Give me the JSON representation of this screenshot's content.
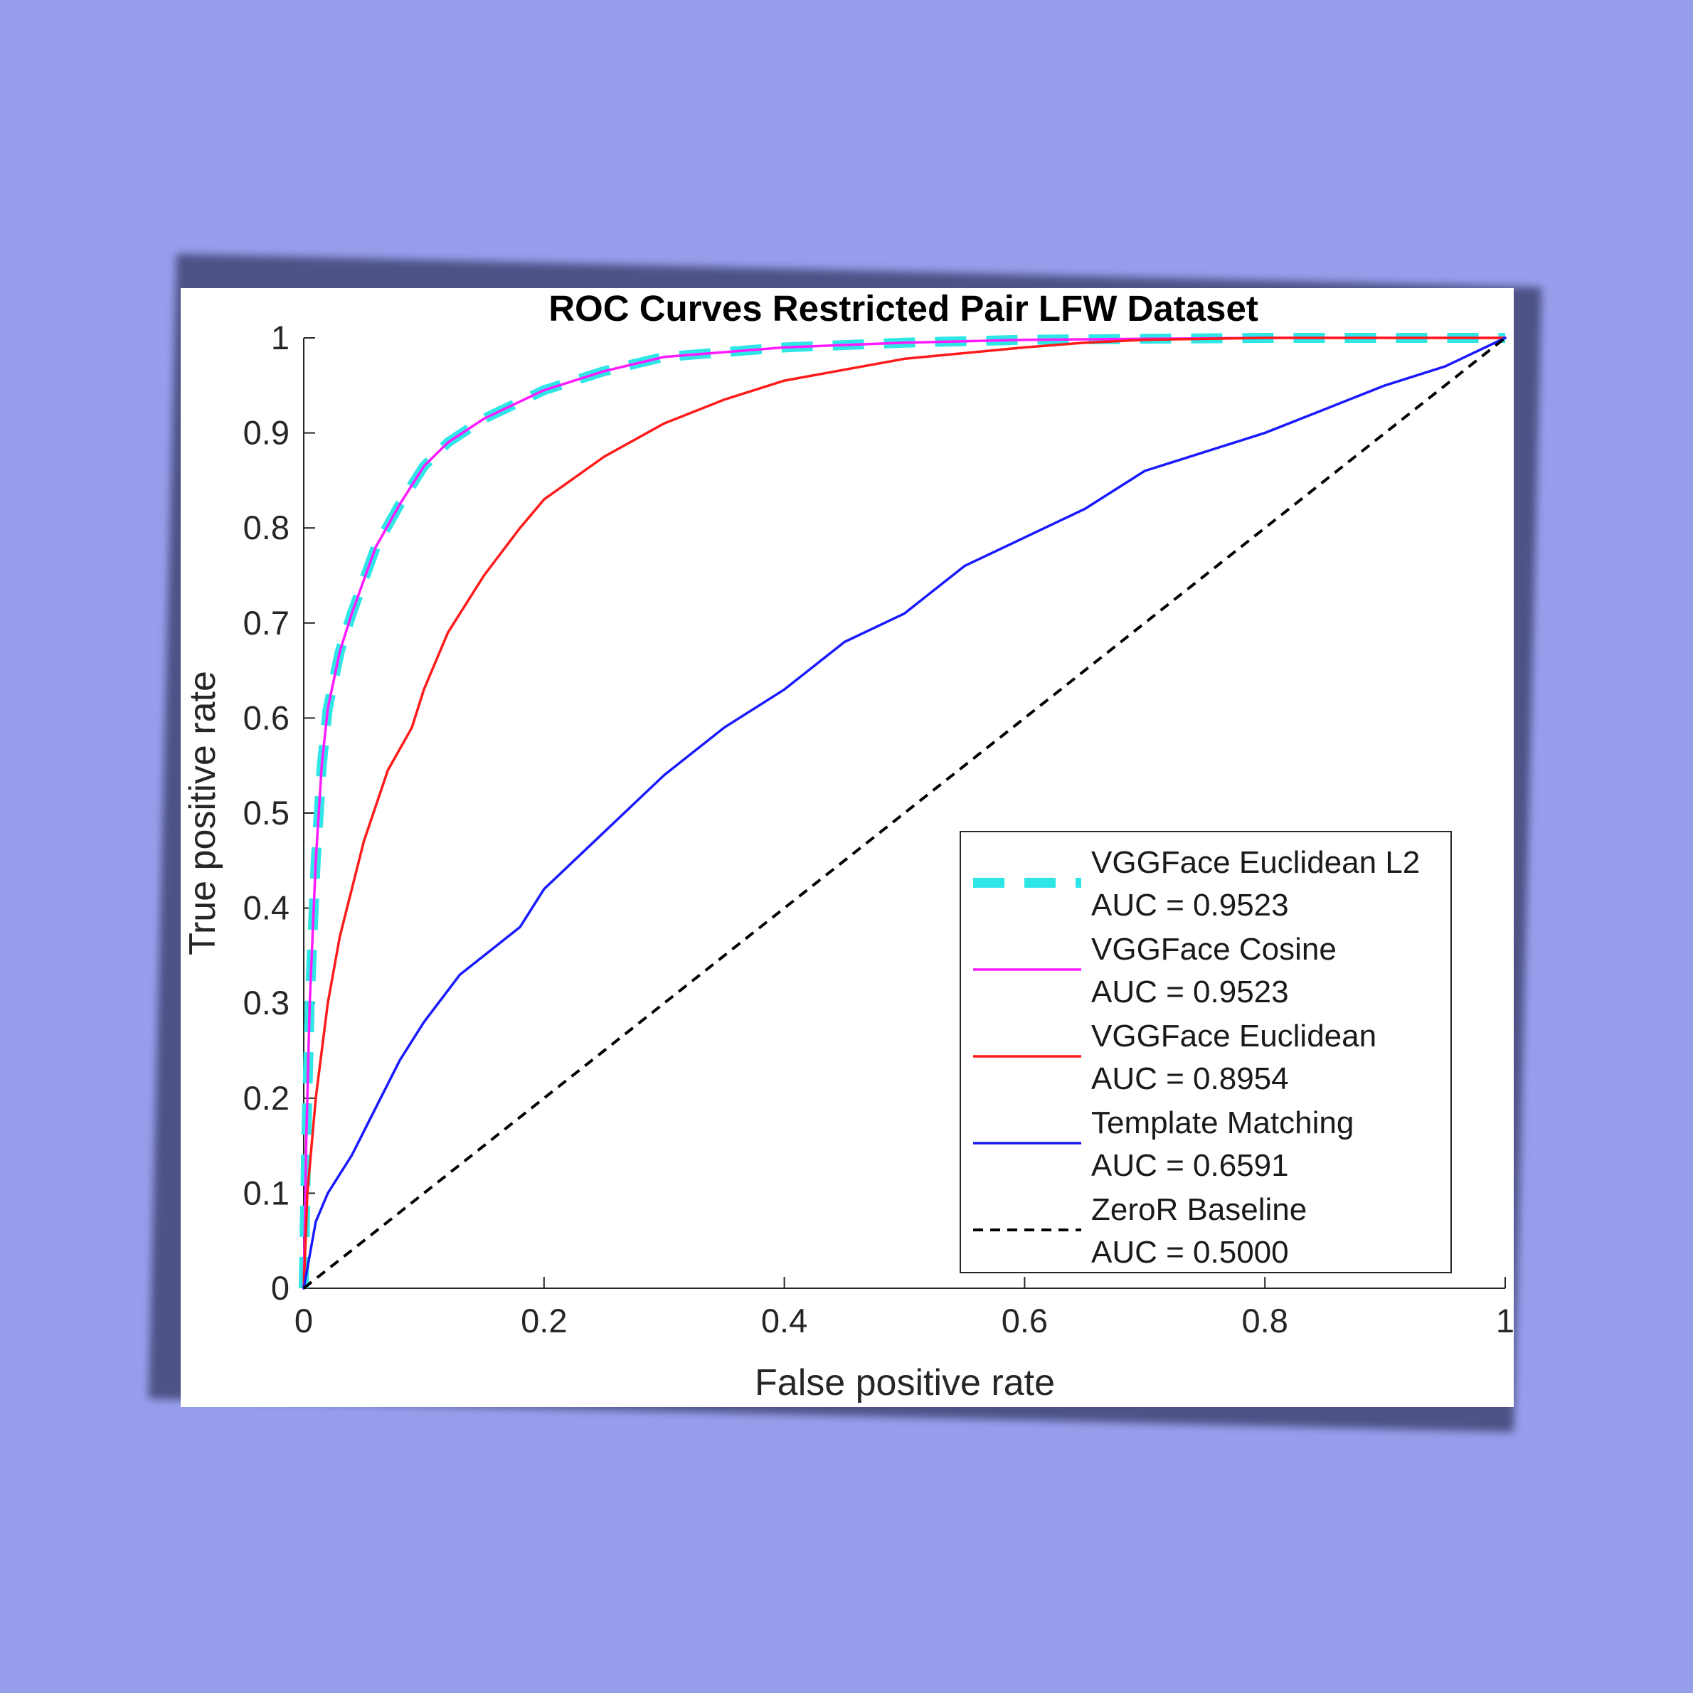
{
  "chart_data": {
    "type": "line",
    "title": "ROC Curves Restricted Pair LFW Dataset",
    "xlabel": "False positive rate",
    "ylabel": "True positive rate",
    "xlim": [
      0,
      1
    ],
    "ylim": [
      0,
      1
    ],
    "xticks": [
      "0",
      "0.2",
      "0.4",
      "0.6",
      "0.8",
      "1"
    ],
    "yticks": [
      "0",
      "0.1",
      "0.2",
      "0.3",
      "0.4",
      "0.5",
      "0.6",
      "0.7",
      "0.8",
      "0.9",
      "1"
    ],
    "grid": false,
    "legend_position": "bottom-right",
    "series": [
      {
        "name": "VGGFace Euclidean L2",
        "auc_label": "AUC = 0.9523",
        "color": "#2ee6e6",
        "style": "dashed-thick",
        "x": [
          0,
          0.002,
          0.005,
          0.01,
          0.015,
          0.02,
          0.03,
          0.04,
          0.05,
          0.06,
          0.08,
          0.1,
          0.12,
          0.15,
          0.2,
          0.25,
          0.3,
          0.4,
          0.5,
          0.6,
          0.7,
          0.8,
          0.9,
          1.0
        ],
        "y": [
          0,
          0.15,
          0.3,
          0.45,
          0.55,
          0.61,
          0.67,
          0.71,
          0.745,
          0.78,
          0.825,
          0.865,
          0.89,
          0.915,
          0.945,
          0.965,
          0.98,
          0.99,
          0.995,
          0.998,
          0.999,
          1.0,
          1.0,
          1.0
        ]
      },
      {
        "name": "VGGFace Cosine",
        "auc_label": "AUC = 0.9523",
        "color": "#ff1aff",
        "style": "solid",
        "x": [
          0,
          0.002,
          0.005,
          0.01,
          0.015,
          0.02,
          0.03,
          0.04,
          0.05,
          0.06,
          0.08,
          0.1,
          0.12,
          0.15,
          0.2,
          0.25,
          0.3,
          0.4,
          0.5,
          0.6,
          0.7,
          0.8,
          0.9,
          1.0
        ],
        "y": [
          0,
          0.15,
          0.3,
          0.45,
          0.55,
          0.61,
          0.67,
          0.71,
          0.745,
          0.78,
          0.825,
          0.865,
          0.89,
          0.915,
          0.945,
          0.965,
          0.98,
          0.99,
          0.995,
          0.998,
          0.999,
          1.0,
          1.0,
          1.0
        ]
      },
      {
        "name": "VGGFace Euclidean",
        "auc_label": "AUC = 0.8954",
        "color": "#ff1a1a",
        "style": "solid",
        "x": [
          0,
          0.003,
          0.01,
          0.02,
          0.03,
          0.05,
          0.07,
          0.09,
          0.1,
          0.12,
          0.15,
          0.18,
          0.2,
          0.25,
          0.3,
          0.35,
          0.4,
          0.5,
          0.6,
          0.65,
          0.7,
          0.8,
          0.9,
          1.0
        ],
        "y": [
          0,
          0.1,
          0.2,
          0.3,
          0.37,
          0.47,
          0.545,
          0.59,
          0.63,
          0.69,
          0.75,
          0.8,
          0.83,
          0.875,
          0.91,
          0.935,
          0.955,
          0.978,
          0.99,
          0.995,
          0.998,
          1.0,
          1.0,
          1.0
        ]
      },
      {
        "name": "Template Matching",
        "auc_label": "AUC = 0.6591",
        "color": "#1a1aff",
        "style": "solid",
        "x": [
          0,
          0.01,
          0.02,
          0.04,
          0.06,
          0.08,
          0.1,
          0.13,
          0.15,
          0.18,
          0.2,
          0.25,
          0.3,
          0.35,
          0.4,
          0.45,
          0.5,
          0.55,
          0.6,
          0.65,
          0.7,
          0.75,
          0.8,
          0.85,
          0.9,
          0.95,
          1.0
        ],
        "y": [
          0,
          0.07,
          0.1,
          0.14,
          0.19,
          0.24,
          0.28,
          0.33,
          0.35,
          0.38,
          0.42,
          0.48,
          0.54,
          0.59,
          0.63,
          0.68,
          0.71,
          0.76,
          0.79,
          0.82,
          0.86,
          0.88,
          0.9,
          0.925,
          0.95,
          0.97,
          1.0
        ]
      },
      {
        "name": "ZeroR Baseline",
        "auc_label": "AUC = 0.5000",
        "color": "#000000",
        "style": "dashed",
        "x": [
          0,
          1
        ],
        "y": [
          0,
          1
        ]
      }
    ]
  }
}
